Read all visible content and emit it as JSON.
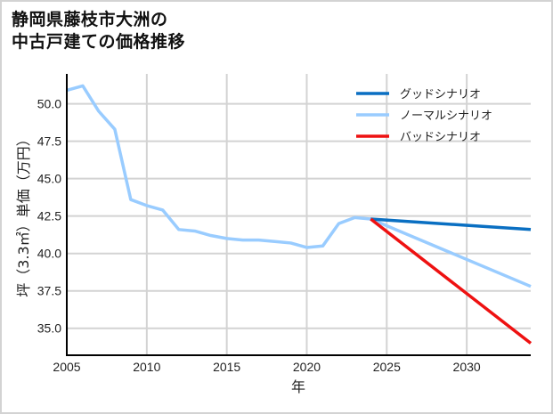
{
  "title": {
    "line1": "静岡県藤枝市大洲の",
    "line2": "中古戸建ての価格推移"
  },
  "chart_data": {
    "type": "line",
    "title": "静岡県藤枝市大洲の中古戸建ての価格推移",
    "xlabel": "年",
    "ylabel": "坪（3.3㎡）単価（万円）",
    "xlim": [
      2005,
      2034
    ],
    "ylim": [
      33.2,
      52.0
    ],
    "xticks": [
      2005,
      2010,
      2015,
      2020,
      2025,
      2030
    ],
    "yticks": [
      35.0,
      37.5,
      40.0,
      42.5,
      45.0,
      47.5,
      50.0
    ],
    "ytick_labels": [
      "35.0",
      "37.5",
      "40.0",
      "42.5",
      "45.0",
      "47.5",
      "50.0"
    ],
    "grid": true,
    "legend_position": "upper right",
    "series": [
      {
        "name": "グッドシナリオ",
        "color": "#0a6fc2",
        "x": [
          2024,
          2034
        ],
        "values": [
          42.3,
          41.6
        ]
      },
      {
        "name": "ノーマルシナリオ",
        "color": "#99ccff",
        "x": [
          2005,
          2006,
          2007,
          2008,
          2009,
          2010,
          2011,
          2012,
          2013,
          2014,
          2015,
          2016,
          2017,
          2018,
          2019,
          2020,
          2021,
          2022,
          2023,
          2024,
          2034
        ],
        "values": [
          50.9,
          51.2,
          49.5,
          48.3,
          43.6,
          43.2,
          42.9,
          41.6,
          41.5,
          41.2,
          41.0,
          40.9,
          40.9,
          40.8,
          40.7,
          40.4,
          40.5,
          42.0,
          42.4,
          42.3,
          37.8
        ]
      },
      {
        "name": "バッドシナリオ",
        "color": "#ee1111",
        "x": [
          2024,
          2034
        ],
        "values": [
          42.3,
          34.0
        ]
      }
    ]
  },
  "legend": {
    "items": [
      {
        "label": "グッドシナリオ"
      },
      {
        "label": "ノーマルシナリオ"
      },
      {
        "label": "バッドシナリオ"
      }
    ]
  }
}
